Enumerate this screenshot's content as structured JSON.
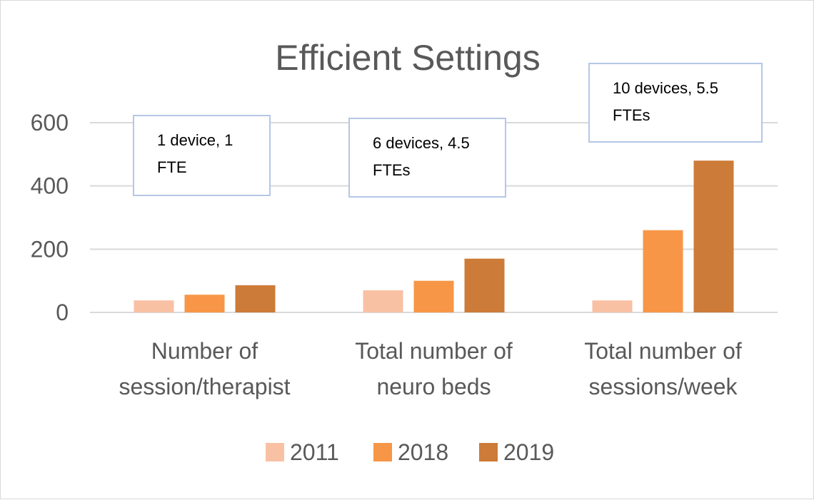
{
  "chart_data": {
    "type": "bar",
    "title": "Efficient Settings",
    "categories": [
      [
        "Number of",
        "session/therapist"
      ],
      [
        "Total number of",
        "neuro beds"
      ],
      [
        "Total number of",
        "sessions/week"
      ]
    ],
    "series": [
      {
        "name": "2011",
        "color": "#F8C1A4",
        "values": [
          38,
          70,
          38
        ]
      },
      {
        "name": "2018",
        "color": "#F79646",
        "values": [
          56,
          100,
          260
        ]
      },
      {
        "name": "2019",
        "color": "#CD7B38",
        "values": [
          86,
          170,
          480
        ]
      }
    ],
    "ylim": [
      0,
      600
    ],
    "yticks": [
      0,
      200,
      400,
      600
    ],
    "grid": true,
    "legend_position": "bottom",
    "annotations": [
      [
        "1 device, 1",
        "FTE"
      ],
      [
        "6 devices, 4.5",
        "FTEs"
      ],
      [
        "10 devices, 5.5",
        "FTEs"
      ]
    ]
  }
}
